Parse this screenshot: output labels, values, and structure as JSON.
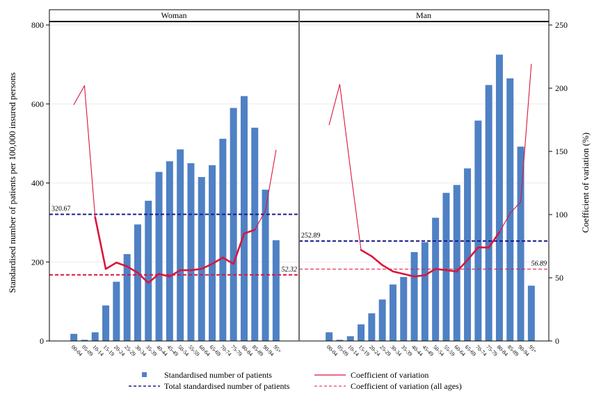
{
  "chart_data": {
    "type": "bar",
    "panels": [
      {
        "title": "Woman",
        "categories": [
          "00-04",
          "05-09",
          "10-14",
          "15-19",
          "20-24",
          "25-29",
          "30-34",
          "35-39",
          "40-44",
          "45-49",
          "50-54",
          "55-59",
          "60-64",
          "65-69",
          "70-74",
          "75-79",
          "80-84",
          "85-89",
          "90-94",
          "95+"
        ],
        "series": [
          {
            "name": "Standardised number of patients",
            "axis": "left",
            "type": "bar",
            "values": [
              18,
              3,
              22,
              90,
              150,
              220,
              295,
              355,
              428,
              455,
              485,
              450,
              415,
              445,
              512,
              590,
              620,
              540,
              383,
              255
            ]
          },
          {
            "name": "Coefficient of variation",
            "axis": "right",
            "type": "line",
            "values": [
              187,
              202,
              98,
              57,
              62,
              59,
              54,
              46,
              53,
              51,
              56,
              56,
              57,
              61,
              66,
              61,
              85,
              88,
              103,
              151
            ]
          }
        ],
        "reference_lines": {
          "total": {
            "value": 320.67,
            "label": "320.67"
          },
          "cv_all_ages": {
            "value": 52.32,
            "label": "52.32"
          }
        }
      },
      {
        "title": "Man",
        "categories": [
          "00-04",
          "05-09",
          "10-14",
          "15-19",
          "20-24",
          "25-29",
          "30-34",
          "35-39",
          "40-44",
          "45-49",
          "50-54",
          "55-59",
          "60-64",
          "65-69",
          "70-74",
          "75-79",
          "80-84",
          "85-89",
          "90-94",
          "95+"
        ],
        "series": [
          {
            "name": "Standardised number of patients",
            "axis": "left",
            "type": "bar",
            "values": [
              22,
              3,
              12,
              42,
              70,
              105,
              143,
              162,
              225,
              250,
              312,
              375,
              395,
              437,
              558,
              648,
              725,
              665,
              492,
              140
            ]
          },
          {
            "name": "Coefficient of variation",
            "axis": "right",
            "type": "line",
            "values": [
              171,
              203,
              136,
              72,
              67,
              60,
              55,
              53,
              51,
              52,
              57,
              56,
              55,
              64,
              74,
              74,
              86,
              101,
              110,
              219
            ]
          }
        ],
        "reference_lines": {
          "total": {
            "value": 252.89,
            "label": "252.89"
          },
          "cv_all_ages": {
            "value": 56.89,
            "label": "56.89"
          }
        }
      }
    ],
    "y_left": {
      "label": "Standardised number of patients per 100,000 insured persons",
      "ticks": [
        "0",
        "200",
        "400",
        "600",
        "800"
      ],
      "range": [
        0,
        800
      ]
    },
    "y_right": {
      "label": "Coefficient of variation (%)",
      "ticks": [
        "0",
        "50",
        "100",
        "150",
        "200",
        "250"
      ],
      "range": [
        0,
        250
      ]
    },
    "legend": {
      "placement": "bottom",
      "items": [
        {
          "key": "bars",
          "label": "Standardised number of patients"
        },
        {
          "key": "cv",
          "label": "Coefficient of variation"
        },
        {
          "key": "total",
          "label": "Total standardised number of patients"
        },
        {
          "key": "cvall",
          "label": "Coefficient of variation (all ages)"
        }
      ]
    },
    "colors": {
      "bar": "#4f81c4",
      "cv_line": "#dc143c",
      "total_line": "#1a1a8c",
      "cv_all_line": "#dc143c",
      "frame": "#000000",
      "divider": "#6e6e6e"
    },
    "grid": true
  }
}
